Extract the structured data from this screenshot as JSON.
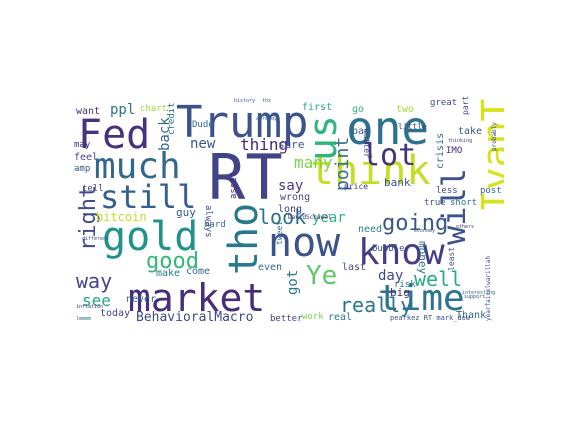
{
  "words": [
    {
      "text": "RT",
      "color": "#414487"
    },
    {
      "text": "Trump",
      "color": "#3b528b"
    },
    {
      "text": "one",
      "color": "#2c728e"
    },
    {
      "text": "IvanTheK",
      "color": "#d8e219"
    },
    {
      "text": "Fed",
      "color": "#46327e"
    },
    {
      "text": "much",
      "color": "#31688e"
    },
    {
      "text": "think",
      "color": "#c2df23"
    },
    {
      "text": "us",
      "color": "#2fb47c"
    },
    {
      "text": "still",
      "color": "#355f8d"
    },
    {
      "text": "lot",
      "color": "#46337e"
    },
    {
      "text": "will",
      "color": "#3b528b"
    },
    {
      "text": "gold",
      "color": "#21918c"
    },
    {
      "text": "tho",
      "color": "#2a788e"
    },
    {
      "text": "now",
      "color": "#3b528b"
    },
    {
      "text": "know",
      "color": "#433e85"
    },
    {
      "text": "market",
      "color": "#472d7b"
    },
    {
      "text": "time",
      "color": "#2c738e"
    },
    {
      "text": "Ye",
      "color": "#5ec962"
    },
    {
      "text": "good",
      "color": "#34b679"
    },
    {
      "text": "going",
      "color": "#38588c"
    },
    {
      "text": "right",
      "color": "#3e4c8a"
    },
    {
      "text": "look",
      "color": "#2d708e"
    },
    {
      "text": "really",
      "color": "#2a768e"
    },
    {
      "text": "well",
      "color": "#27ad81"
    },
    {
      "text": "way",
      "color": "#414487"
    },
    {
      "text": "BehavioralMacro",
      "color": "#3e4a89"
    },
    {
      "text": "point",
      "color": "#2e6e8e"
    },
    {
      "text": "back",
      "color": "#31688e"
    },
    {
      "text": "see",
      "color": "#22a785"
    },
    {
      "text": "many",
      "color": "#7ad151"
    },
    {
      "text": "new",
      "color": "#3b528b"
    },
    {
      "text": "thing",
      "color": "#482878"
    },
    {
      "text": "year",
      "color": "#2fb47c"
    },
    {
      "text": "ppl",
      "color": "#2c728e"
    },
    {
      "text": "bitcoin",
      "color": "#bddf26"
    },
    {
      "text": "say",
      "color": "#443983"
    },
    {
      "text": "day",
      "color": "#3e4a89"
    },
    {
      "text": "got",
      "color": "#2a788e"
    },
    {
      "text": "today",
      "color": "#3e4a89"
    },
    {
      "text": "big",
      "color": "#472d7b"
    },
    {
      "text": "guy",
      "color": "#38588c"
    },
    {
      "text": "money",
      "color": "#2c728e"
    },
    {
      "text": "bank",
      "color": "#3b528b"
    },
    {
      "text": "make",
      "color": "#2a788e"
    },
    {
      "text": "come",
      "color": "#31688e"
    },
    {
      "text": "last",
      "color": "#3e4a89"
    },
    {
      "text": "need",
      "color": "#26828e"
    },
    {
      "text": "sure",
      "color": "#3b528b"
    },
    {
      "text": "want",
      "color": "#46337e"
    },
    {
      "text": "feel",
      "color": "#414487"
    },
    {
      "text": "tell",
      "color": "#443983"
    },
    {
      "text": "never",
      "color": "#31688e"
    },
    {
      "text": "even",
      "color": "#2e6e8e"
    },
    {
      "text": "long",
      "color": "#433e85"
    },
    {
      "text": "first",
      "color": "#22a785"
    },
    {
      "text": "go",
      "color": "#35b779"
    },
    {
      "text": "two",
      "color": "#a5db36"
    },
    {
      "text": "great",
      "color": "#3e4a89"
    },
    {
      "text": "bad",
      "color": "#355f8d"
    },
    {
      "text": "take",
      "color": "#3b528b"
    },
    {
      "text": "Dude",
      "color": "#31688e"
    },
    {
      "text": "credit",
      "color": "#2c728e"
    },
    {
      "text": "chart",
      "color": "#a0da39"
    },
    {
      "text": "always",
      "color": "#3e4a89"
    },
    {
      "text": "hard",
      "color": "#31688e"
    },
    {
      "text": "asset",
      "color": "#482878"
    },
    {
      "text": "wrong",
      "color": "#3e4c8a"
    },
    {
      "text": "real",
      "color": "#2a788e"
    },
    {
      "text": "work",
      "color": "#7ad151"
    },
    {
      "text": "better",
      "color": "#443983"
    },
    {
      "text": "Thank",
      "color": "#31688e"
    },
    {
      "text": "crisis",
      "color": "#31688e"
    },
    {
      "text": "bubble",
      "color": "#3b528b"
    },
    {
      "text": "true",
      "color": "#3b528b"
    },
    {
      "text": "short",
      "color": "#2a788e"
    },
    {
      "text": "less",
      "color": "#3e4a89"
    },
    {
      "text": "post",
      "color": "#31688e"
    },
    {
      "text": "IMO",
      "color": "#482878"
    },
    {
      "text": "amp",
      "color": "#3b528b"
    },
    {
      "text": "may",
      "color": "#46337e"
    },
    {
      "text": "risk",
      "color": "#2c728e"
    },
    {
      "text": "matter",
      "color": "#3e4a89"
    },
    {
      "text": "tweet",
      "color": "#31688e"
    },
    {
      "text": "price",
      "color": "#443983"
    },
    {
      "text": "little",
      "color": "#3e4a89"
    },
    {
      "text": "part",
      "color": "#3e4a89"
    },
    {
      "text": "least",
      "color": "#3b528b"
    },
    {
      "text": "pearkez RT mark_dow",
      "color": "#3b528b"
    },
    {
      "text": "DavidSchawel",
      "color": "#46337e"
    },
    {
      "text": "yearfaiselwarillah",
      "color": "#3b528b"
    },
    {
      "text": "probably",
      "color": "#3e4a89"
    },
    {
      "text": "inflation",
      "color": "#482878"
    },
    {
      "text": "lmmmm",
      "color": "#2c728e"
    },
    {
      "text": "others",
      "color": "#46337e"
    },
    {
      "text": "history",
      "color": "#3b528b"
    },
    {
      "text": "thx",
      "color": "#31688e"
    },
    {
      "text": "thinking",
      "color": "#3e4a89"
    },
    {
      "text": "economy",
      "color": "#3b528b"
    },
    {
      "text": "already",
      "color": "#31688e"
    },
    {
      "text": "different",
      "color": "#3e4a89"
    },
    {
      "text": "interesting",
      "color": "#31688e"
    },
    {
      "text": "support",
      "color": "#3b528b"
    },
    {
      "text": "attracts",
      "color": "#46337e"
    }
  ]
}
